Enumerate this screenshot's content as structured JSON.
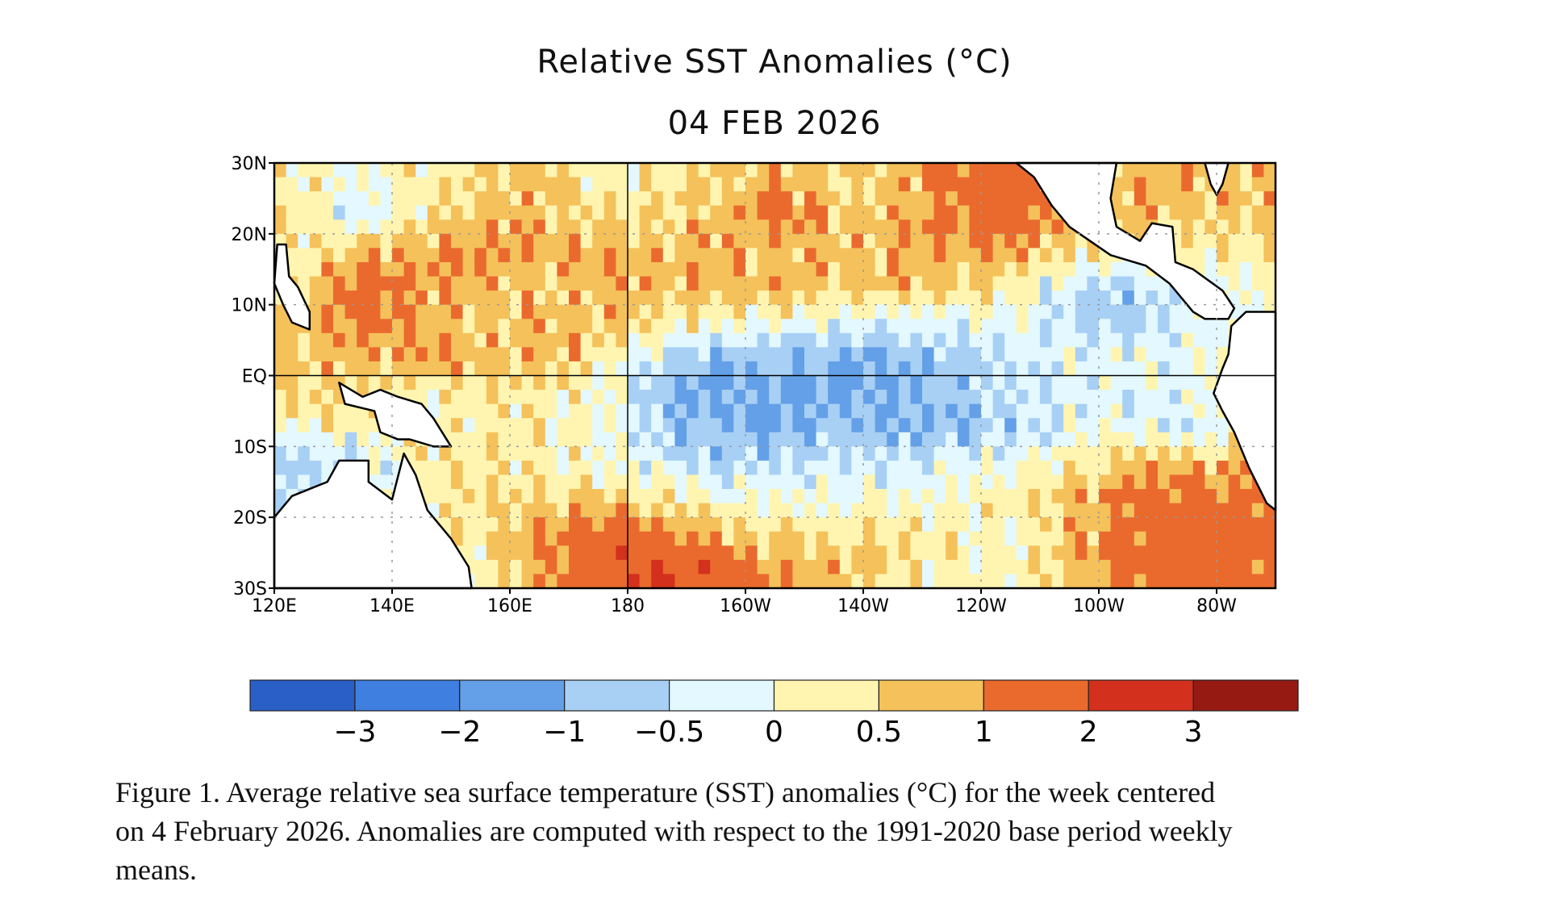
{
  "chart_data": {
    "type": "heatmap",
    "title": "Relative SST Anomalies (°C)",
    "subtitle": "04 FEB 2026",
    "x_tick_labels": [
      "120E",
      "140E",
      "160E",
      "180",
      "160W",
      "140W",
      "120W",
      "100W",
      "80W"
    ],
    "x_tick_lons": [
      120,
      140,
      160,
      180,
      200,
      220,
      240,
      260,
      280
    ],
    "y_tick_labels": [
      "30N",
      "20N",
      "10N",
      "EQ",
      "10S",
      "20S",
      "30S"
    ],
    "y_tick_lats": [
      30,
      20,
      10,
      0,
      -10,
      -20,
      -30
    ],
    "lon_range": [
      120,
      290
    ],
    "lat_range": [
      -30,
      30
    ],
    "grid_lon_centers": [
      125,
      135,
      145,
      155,
      165,
      175,
      185,
      195,
      205,
      215,
      225,
      235,
      245,
      255,
      265,
      275,
      285
    ],
    "grid_lat_centers": [
      27.5,
      22.5,
      17.5,
      12.5,
      7.5,
      2.5,
      -2.5,
      -7.5,
      -12.5,
      -17.5,
      -22.5,
      -27.5
    ],
    "anomaly_grid": [
      [
        0.2,
        0.0,
        0.3,
        0.5,
        0.7,
        0.2,
        0.3,
        0.5,
        0.8,
        0.5,
        0.6,
        1.2,
        1.5,
        0.9,
        0.8,
        0.8,
        0.7
      ],
      [
        0.3,
        -0.5,
        0.3,
        0.7,
        0.8,
        0.5,
        0.5,
        0.8,
        1.2,
        0.8,
        0.7,
        1.2,
        1.3,
        0.8,
        0.7,
        0.7,
        0.7
      ],
      [
        0.4,
        0.8,
        0.9,
        1.0,
        0.9,
        0.9,
        0.8,
        0.9,
        0.7,
        0.7,
        0.8,
        1.0,
        0.9,
        0.5,
        0.3,
        0.3,
        0.3
      ],
      [
        0.5,
        1.5,
        0.9,
        0.8,
        0.6,
        0.8,
        0.7,
        0.8,
        0.9,
        0.6,
        0.7,
        0.5,
        0.3,
        -0.5,
        -0.7,
        -0.3,
        0.0
      ],
      [
        0.6,
        1.2,
        0.9,
        0.7,
        0.7,
        0.8,
        0.5,
        0.2,
        0.0,
        -0.1,
        -0.3,
        -0.2,
        -0.1,
        -0.6,
        -0.8,
        -0.3,
        0.0
      ],
      [
        0.7,
        0.8,
        0.9,
        0.7,
        0.9,
        0.4,
        -0.5,
        -1.0,
        -0.8,
        -1.1,
        -1.0,
        -0.8,
        -0.4,
        -0.2,
        -0.1,
        -0.2,
        0.4
      ],
      [
        0.5,
        0.4,
        0.3,
        0.3,
        0.4,
        0.0,
        -0.8,
        -1.2,
        -1.1,
        -1.2,
        -1.0,
        -0.9,
        -0.5,
        -0.3,
        -0.2,
        -0.3,
        0.5
      ],
      [
        0.0,
        0.2,
        0.2,
        0.3,
        0.3,
        0.0,
        -0.6,
        -1.0,
        -1.0,
        -0.8,
        -1.1,
        -0.9,
        -0.6,
        -0.3,
        -0.1,
        -0.5,
        0.3
      ],
      [
        -0.7,
        -0.6,
        0.3,
        0.4,
        0.2,
        0.0,
        -0.3,
        -0.6,
        -0.5,
        -0.4,
        -0.4,
        -0.3,
        -0.1,
        0.2,
        0.7,
        0.8,
        0.8
      ],
      [
        -0.5,
        -0.3,
        0.3,
        0.5,
        0.7,
        0.6,
        0.4,
        0.1,
        0.0,
        -0.1,
        0.0,
        0.1,
        0.3,
        0.7,
        1.2,
        1.4,
        1.4
      ],
      [
        0.2,
        0.2,
        0.3,
        0.3,
        1.0,
        1.5,
        1.2,
        0.8,
        0.5,
        0.3,
        0.6,
        0.2,
        0.1,
        0.6,
        1.2,
        1.6,
        1.5
      ],
      [
        0.2,
        0.2,
        0.2,
        0.2,
        0.9,
        1.6,
        2.0,
        1.6,
        1.0,
        0.7,
        0.4,
        0.2,
        0.1,
        0.7,
        1.3,
        1.5,
        1.3
      ]
    ],
    "colorbar": {
      "bounds": [
        -3,
        -2,
        -1,
        -0.5,
        0,
        0.5,
        1,
        2,
        3
      ],
      "labels": [
        "−3",
        "−2",
        "−1",
        "−0.5",
        "0",
        "0.5",
        "1",
        "2",
        "3"
      ],
      "colors": [
        "#2b5fc8",
        "#3f7fe0",
        "#64a0e8",
        "#a8d0f5",
        "#e3f8ff",
        "#fff5b0",
        "#f5c15a",
        "#ea6a2e",
        "#d3301d",
        "#961a12"
      ]
    },
    "grid": true
  },
  "caption": {
    "line1": "Figure 1. Average relative sea surface temperature (SST) anomalies (°C) for the week centered",
    "line2": "on 4 February 2026.  Anomalies are computed with respect to the 1991-2020 base period weekly",
    "line3": "means."
  }
}
